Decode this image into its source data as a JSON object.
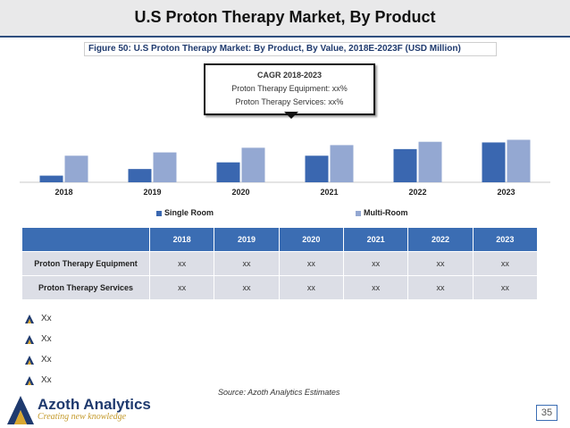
{
  "header": {
    "title": "U.S Proton Therapy Market, By Product"
  },
  "figure_caption": "Figure 50: U.S Proton Therapy Market: By Product, By Value, 2018E-2023F (USD Million)",
  "cagr_box": {
    "title": "CAGR 2018-2023",
    "line1": "Proton Therapy Equipment: xx%",
    "line2": "Proton Therapy Services: xx%"
  },
  "chart_data": {
    "type": "bar",
    "categories": [
      "2018",
      "2019",
      "2020",
      "2021",
      "2022",
      "2023"
    ],
    "series": [
      {
        "name": "Single Room",
        "values": [
          1,
          2,
          3,
          4,
          5,
          6
        ]
      },
      {
        "name": "Multi-Room",
        "values": [
          4,
          4.5,
          5.2,
          5.6,
          6.1,
          6.4
        ]
      }
    ],
    "ylim": [
      0,
      7
    ],
    "colors": {
      "Single Room": "#3a67b0",
      "Multi-Room": "#94a8d2"
    },
    "title": "",
    "xlabel": "",
    "ylabel": "",
    "legend_position": "bottom"
  },
  "table": {
    "headers": [
      "",
      "2018",
      "2019",
      "2020",
      "2021",
      "2022",
      "2023"
    ],
    "rows": [
      {
        "label": "Proton Therapy Equipment",
        "cells": [
          "xx",
          "xx",
          "xx",
          "xx",
          "xx",
          "xx"
        ]
      },
      {
        "label": "Proton Therapy Services",
        "cells": [
          "xx",
          "xx",
          "xx",
          "xx",
          "xx",
          "xx"
        ]
      }
    ]
  },
  "bullets": [
    "Xx",
    "Xx",
    "Xx",
    "Xx"
  ],
  "source": "Source: Azoth Analytics Estimates",
  "logo": {
    "brand": "Azoth Analytics",
    "tagline": "Creating new knowledge"
  },
  "page_number": "35",
  "colors": {
    "accent": "#3b6db3",
    "table_header": "#3b6db3",
    "table_cell": "#dcdee6"
  }
}
